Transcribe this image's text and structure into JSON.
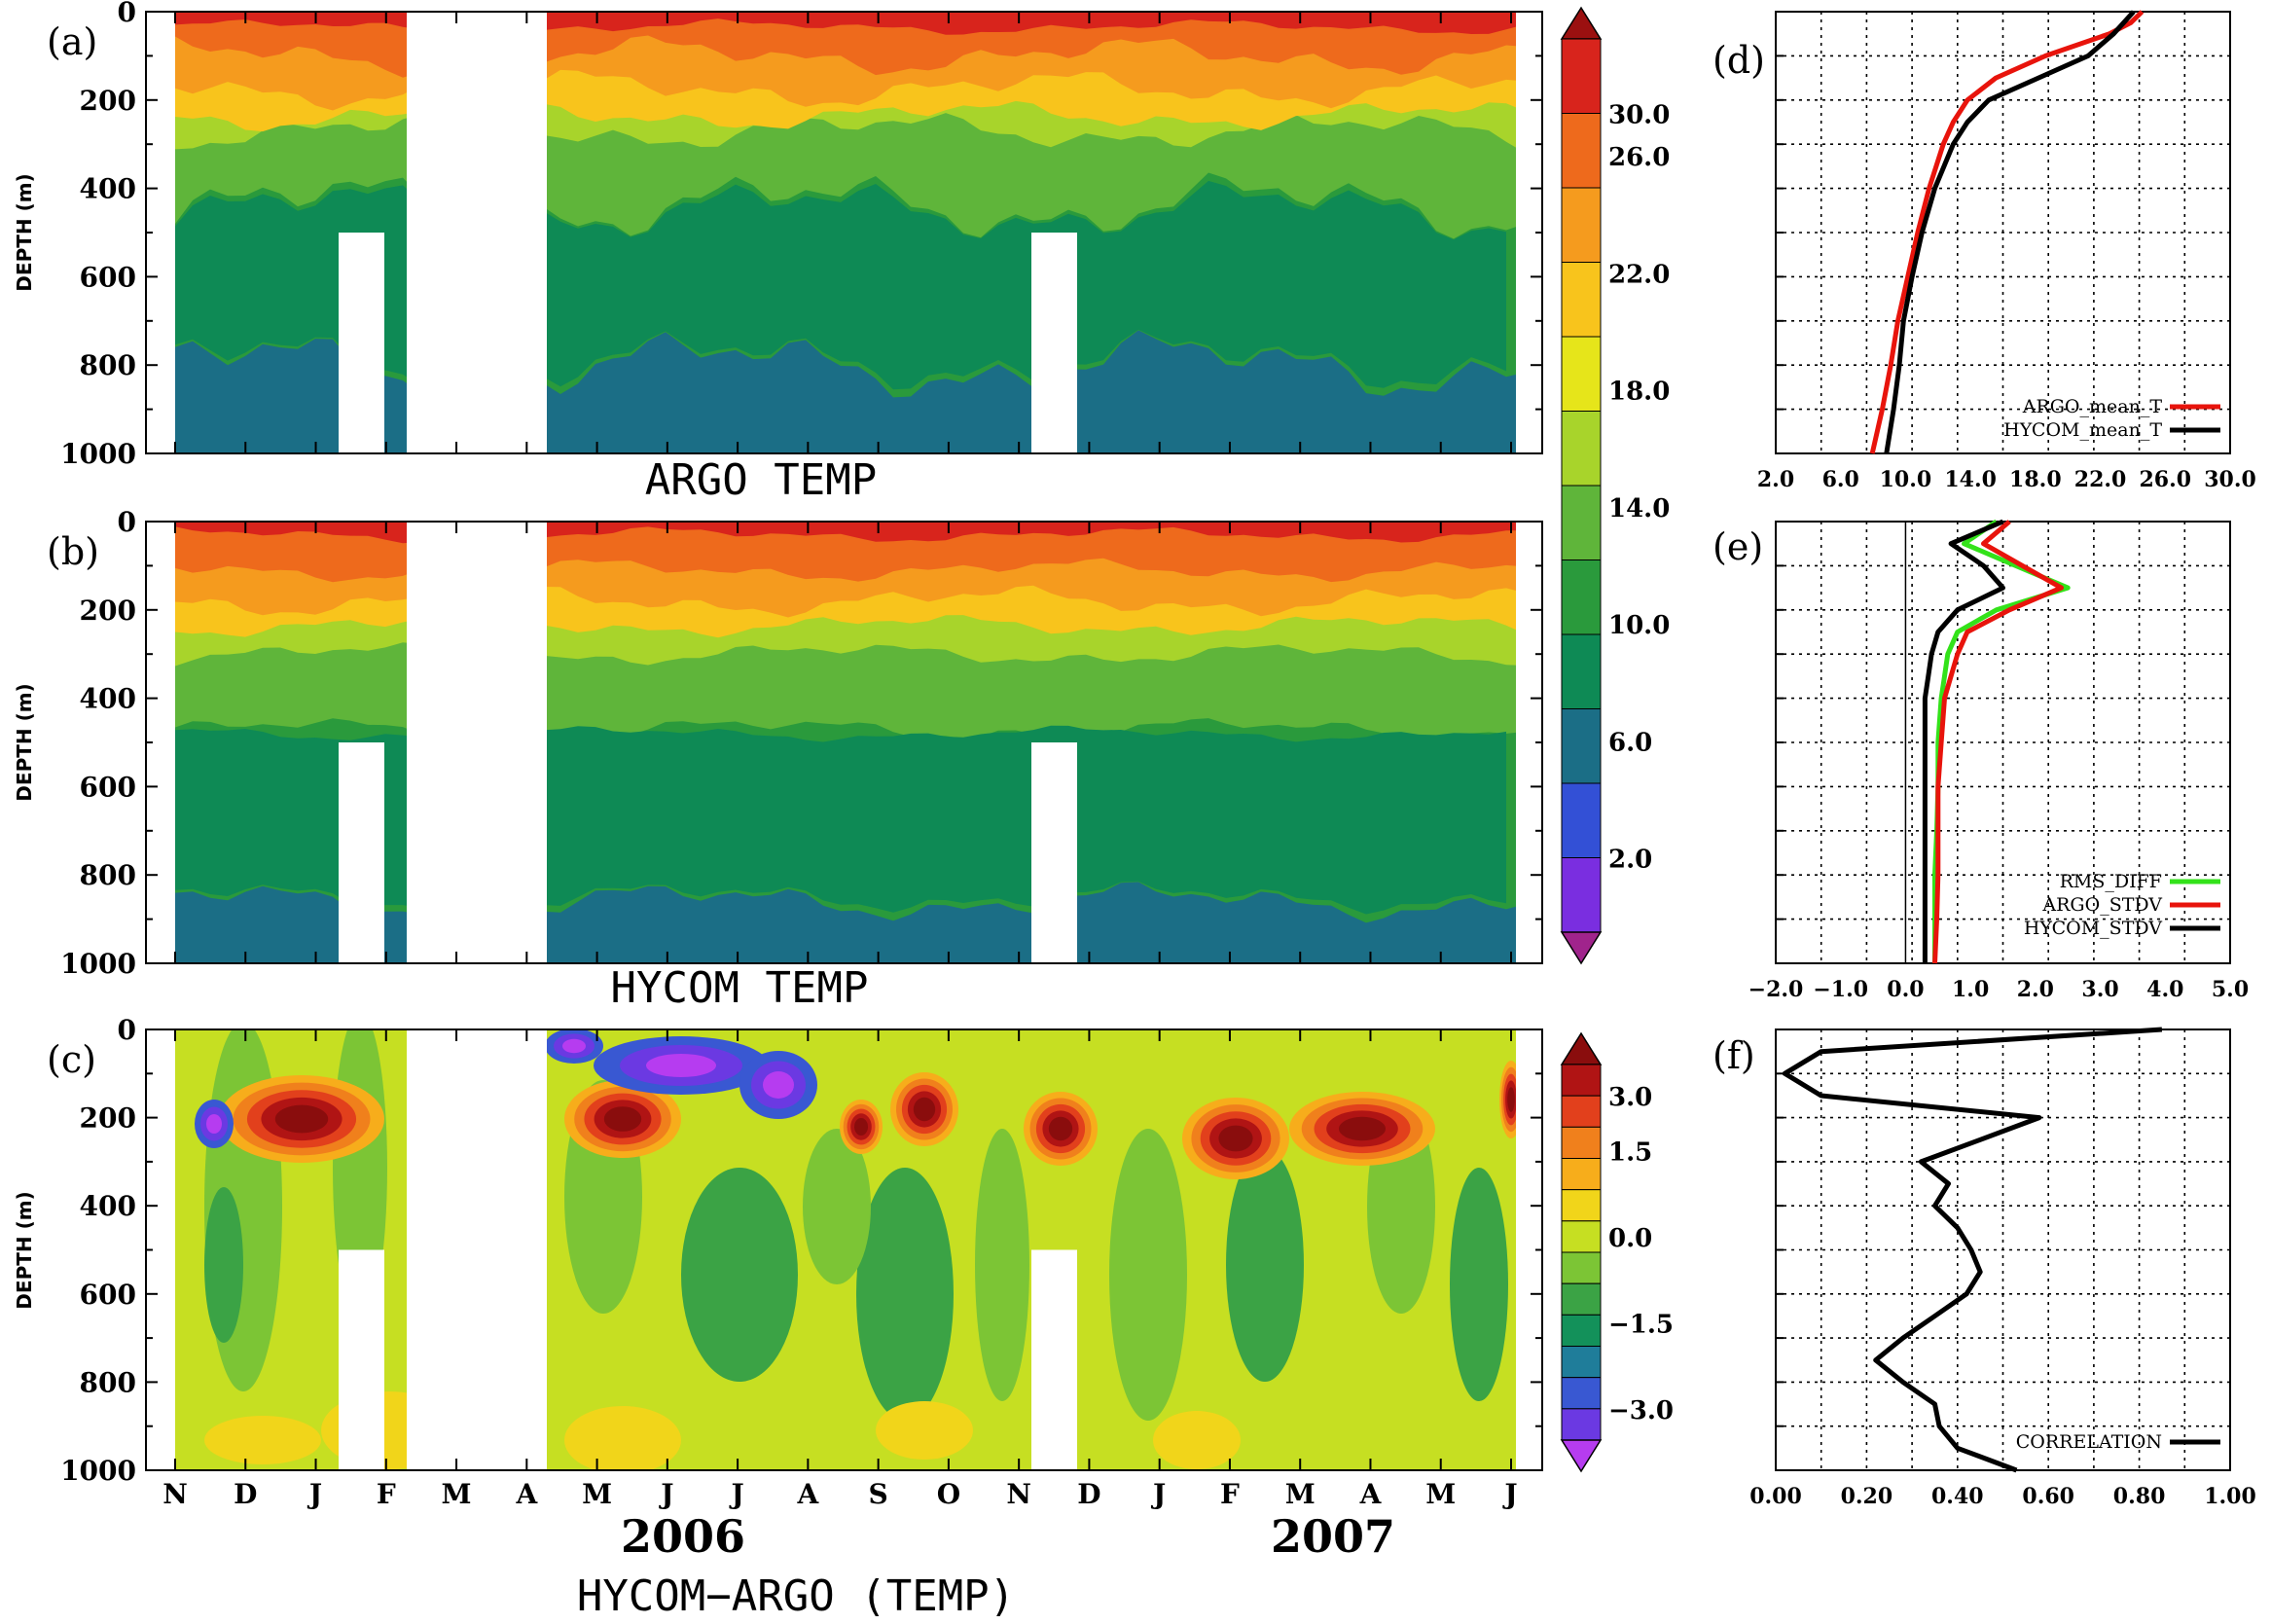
{
  "colors": {
    "temp_bands": [
      "#a0248c",
      "#7a2ee0",
      "#3350d6",
      "#1b6e86",
      "#0e8a55",
      "#2a9a3c",
      "#5fb53a",
      "#a8d42b",
      "#e6e51a",
      "#f8c41c",
      "#f59b1e",
      "#ee6a1c",
      "#d8241c",
      "#9b1010"
    ],
    "diff_bands": [
      "#b63cf0",
      "#6b39e2",
      "#3958d2",
      "#1f7d9a",
      "#13915a",
      "#3ba345",
      "#7cc535",
      "#c6df22",
      "#f1d51a",
      "#f7ad1b",
      "#f0801c",
      "#e2401c",
      "#b01414",
      "#8a0d0d"
    ],
    "argo_line": "#e8140c",
    "hycom_line": "#000000",
    "rms_line": "#33e21a",
    "corr_line": "#000000"
  },
  "panels": {
    "a": {
      "tag": "(a)",
      "title": "ARGO TEMP",
      "ylabel": "DEPTH (m)"
    },
    "b": {
      "tag": "(b)",
      "title": "HYCOM TEMP",
      "ylabel": "DEPTH (m)"
    },
    "c": {
      "tag": "(c)",
      "title": "HYCOM−ARGO (TEMP)",
      "ylabel": "DEPTH (m)"
    },
    "d": {
      "tag": "(d)"
    },
    "e": {
      "tag": "(e)"
    },
    "f": {
      "tag": "(f)"
    }
  },
  "depth_ticks": [
    "0",
    "200",
    "400",
    "600",
    "800",
    "1000"
  ],
  "months": [
    "N",
    "D",
    "J",
    "F",
    "M",
    "A",
    "M",
    "J",
    "J",
    "A",
    "S",
    "O",
    "N",
    "D",
    "J",
    "F",
    "M",
    "A",
    "M",
    "J"
  ],
  "years": [
    "2006",
    "2007"
  ],
  "colorbar_temp": [
    "30.0",
    "26.0",
    "22.0",
    "18.0",
    "14.0",
    "10.0",
    "6.0",
    "2.0"
  ],
  "colorbar_diff": [
    "3.0",
    "1.5",
    "0.0",
    "−1.5",
    "−3.0"
  ],
  "chart_data": [
    {
      "type": "heatmap",
      "title": "ARGO TEMP",
      "ylabel": "DEPTH (m)",
      "ylim": [
        1000,
        0
      ],
      "x_ticks": [
        "N",
        "D",
        "J",
        "F",
        "M",
        "A",
        "M",
        "J",
        "J",
        "A",
        "S",
        "O",
        "N",
        "D",
        "J",
        "F",
        "M",
        "A",
        "M",
        "J"
      ],
      "legend_levels": [
        30,
        26,
        22,
        18,
        14,
        10,
        6,
        2
      ],
      "profile_depths": [
        0,
        50,
        100,
        150,
        200,
        250,
        300,
        400,
        500,
        600,
        700,
        800,
        900,
        1000
      ],
      "profile_values": [
        28.5,
        27.5,
        26.0,
        23.5,
        20.5,
        18.0,
        16.5,
        15.0,
        13.8,
        12.6,
        11.8,
        11.0,
        10.0,
        9.0
      ]
    },
    {
      "type": "heatmap",
      "title": "HYCOM TEMP",
      "ylabel": "DEPTH (m)",
      "ylim": [
        1000,
        0
      ],
      "x_ticks": [
        "N",
        "D",
        "J",
        "F",
        "M",
        "A",
        "M",
        "J",
        "J",
        "A",
        "S",
        "O",
        "N",
        "D",
        "J",
        "F",
        "M",
        "A",
        "M",
        "J"
      ],
      "legend_levels": [
        30,
        26,
        22,
        18,
        14,
        10,
        6,
        2
      ],
      "profile_depths": [
        0,
        50,
        100,
        150,
        200,
        250,
        300,
        400,
        500,
        600,
        700,
        800,
        900,
        1000
      ],
      "profile_values": [
        28.0,
        27.0,
        25.0,
        21.5,
        19.0,
        17.5,
        16.5,
        15.5,
        14.0,
        13.0,
        12.5,
        12.0,
        11.5,
        11.0
      ]
    },
    {
      "type": "heatmap",
      "title": "HYCOM−ARGO (TEMP)",
      "ylabel": "DEPTH (m)",
      "ylim": [
        1000,
        0
      ],
      "x_ticks": [
        "N",
        "D",
        "J",
        "F",
        "M",
        "A",
        "M",
        "J",
        "J",
        "A",
        "S",
        "O",
        "N",
        "D",
        "J",
        "F",
        "M",
        "A",
        "M",
        "J"
      ],
      "years": [
        "2006",
        "2007"
      ],
      "legend_levels": [
        3.0,
        1.5,
        0.0,
        -1.5,
        -3.0
      ]
    },
    {
      "type": "line",
      "xlim": [
        2,
        34
      ],
      "ylim": [
        1000,
        0
      ],
      "x_ticks": [
        "2.0",
        "6.0",
        "10.0",
        "14.0",
        "18.0",
        "22.0",
        "26.0",
        "30.0"
      ],
      "grid": true,
      "legend_position": "bottom-right",
      "series": [
        {
          "name": "ARGO_mean_T",
          "depth": [
            0,
            25,
            50,
            100,
            150,
            200,
            250,
            300,
            400,
            500,
            600,
            700,
            800,
            900,
            1000
          ],
          "x": [
            27.8,
            27.0,
            25.5,
            21.0,
            17.5,
            15.5,
            14.5,
            13.8,
            12.8,
            12.0,
            11.3,
            10.6,
            10.1,
            9.5,
            8.8
          ]
        },
        {
          "name": "HYCOM_mean_T",
          "depth": [
            0,
            25,
            50,
            100,
            150,
            200,
            250,
            300,
            400,
            500,
            600,
            700,
            800,
            900,
            1000
          ],
          "x": [
            27.2,
            26.5,
            25.8,
            24.0,
            20.5,
            17.0,
            15.5,
            14.5,
            13.2,
            12.3,
            11.6,
            11.0,
            10.7,
            10.3,
            9.8
          ]
        }
      ]
    },
    {
      "type": "line",
      "xlim": [
        -2,
        5
      ],
      "ylim": [
        1000,
        0
      ],
      "x_ticks": [
        "−2.0",
        "−1.0",
        "0.0",
        "1.0",
        "2.0",
        "3.0",
        "4.0",
        "5.0"
      ],
      "grid": true,
      "legend_position": "bottom-right",
      "series": [
        {
          "name": "RMS_DIFF",
          "depth": [
            0,
            50,
            100,
            150,
            200,
            250,
            300,
            350,
            400,
            500,
            600,
            700,
            800,
            900,
            1000
          ],
          "x": [
            1.4,
            0.9,
            1.7,
            2.5,
            1.4,
            0.8,
            0.65,
            0.6,
            0.55,
            0.5,
            0.5,
            0.48,
            0.45,
            0.45,
            0.45
          ]
        },
        {
          "name": "ARGO_STDV",
          "depth": [
            0,
            50,
            100,
            150,
            200,
            250,
            300,
            350,
            400,
            500,
            600,
            700,
            800,
            900,
            1000
          ],
          "x": [
            1.6,
            1.2,
            1.8,
            2.4,
            1.6,
            0.95,
            0.8,
            0.7,
            0.6,
            0.55,
            0.5,
            0.5,
            0.5,
            0.48,
            0.45
          ]
        },
        {
          "name": "HYCOM_STDV",
          "depth": [
            0,
            50,
            100,
            150,
            200,
            250,
            300,
            350,
            400,
            500,
            600,
            700,
            800,
            900,
            1000
          ],
          "x": [
            1.5,
            0.7,
            1.2,
            1.5,
            0.8,
            0.5,
            0.4,
            0.35,
            0.3,
            0.3,
            0.3,
            0.3,
            0.3,
            0.3,
            0.3
          ]
        }
      ]
    },
    {
      "type": "line",
      "xlim": [
        0,
        1
      ],
      "ylim": [
        1000,
        0
      ],
      "x_ticks": [
        "0.00",
        "0.20",
        "0.40",
        "0.60",
        "0.80",
        "1.00"
      ],
      "grid": true,
      "legend_position": "bottom-right",
      "series": [
        {
          "name": "CORRELATION",
          "depth": [
            0,
            50,
            100,
            150,
            200,
            250,
            300,
            350,
            400,
            450,
            500,
            550,
            600,
            650,
            700,
            750,
            800,
            850,
            900,
            950,
            1000
          ],
          "x": [
            0.85,
            0.1,
            0.02,
            0.1,
            0.58,
            0.45,
            0.32,
            0.38,
            0.35,
            0.4,
            0.43,
            0.45,
            0.42,
            0.35,
            0.28,
            0.22,
            0.28,
            0.35,
            0.36,
            0.4,
            0.53
          ]
        }
      ]
    }
  ]
}
